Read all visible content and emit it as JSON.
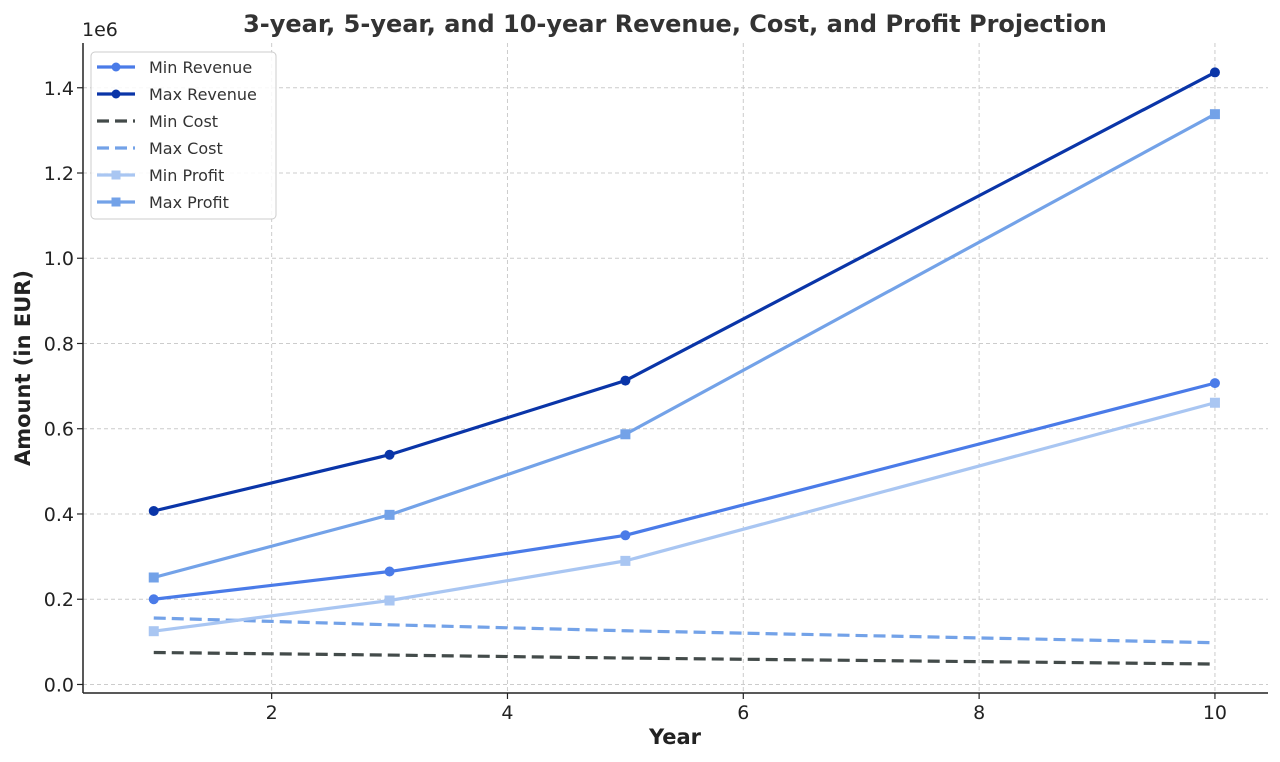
{
  "chart_data": {
    "type": "line",
    "title": "3-year, 5-year, and 10-year Revenue, Cost, and Profit Projection",
    "xlabel": "Year",
    "ylabel": "Amount (in EUR)",
    "y_offset_label": "1e6",
    "x": [
      1,
      3,
      5,
      10
    ],
    "xlim": [
      0.4,
      10.45
    ],
    "ylim": [
      -20000,
      1505000
    ],
    "xticks": [
      2,
      4,
      6,
      8,
      10
    ],
    "xtick_labels": [
      "2",
      "4",
      "6",
      "8",
      "10"
    ],
    "yticks": [
      0,
      200000,
      400000,
      600000,
      800000,
      1000000,
      1200000,
      1400000
    ],
    "ytick_labels": [
      "0.0",
      "0.2",
      "0.4",
      "0.6",
      "0.8",
      "1.0",
      "1.2",
      "1.4"
    ],
    "grid": true,
    "legend_position": "top-left",
    "series": [
      {
        "name": "Min Revenue",
        "values": [
          200000,
          265000,
          350000,
          707000
        ],
        "color": "#4a7be8",
        "dash": "solid",
        "marker": "circle"
      },
      {
        "name": "Max Revenue",
        "values": [
          407000,
          539000,
          713000,
          1436000
        ],
        "color": "#0a35a8",
        "dash": "solid",
        "marker": "circle"
      },
      {
        "name": "Min Cost",
        "values": [
          75000,
          69000,
          62000,
          48000
        ],
        "color": "#434b4a",
        "dash": "dashed",
        "marker": "none"
      },
      {
        "name": "Max Cost",
        "values": [
          156000,
          140000,
          126000,
          98000
        ],
        "color": "#73a2e8",
        "dash": "dashed",
        "marker": "none"
      },
      {
        "name": "Min Profit",
        "values": [
          125000,
          197000,
          290000,
          661000
        ],
        "color": "#a9c6f2",
        "dash": "solid",
        "marker": "square"
      },
      {
        "name": "Max Profit",
        "values": [
          251000,
          398000,
          587000,
          1338000
        ],
        "color": "#73a2e8",
        "dash": "solid",
        "marker": "square"
      }
    ]
  }
}
